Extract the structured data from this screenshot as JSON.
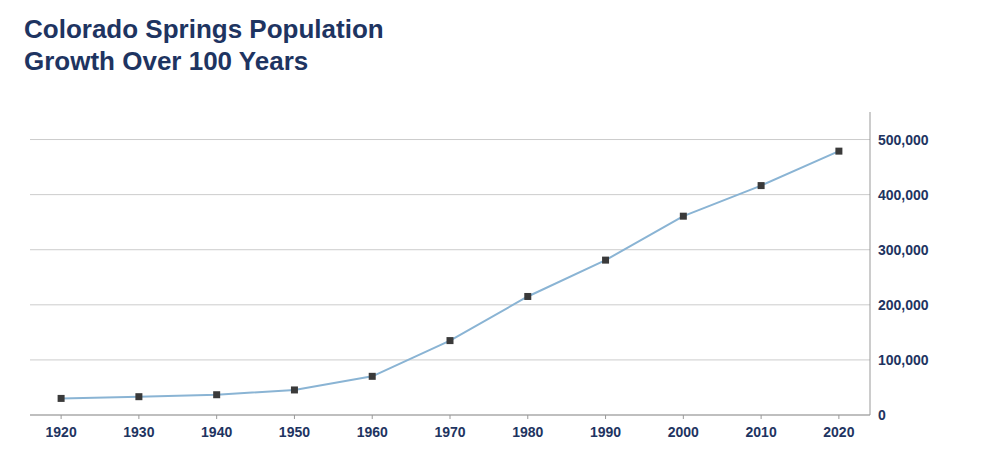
{
  "chart_data": {
    "type": "line",
    "title": "Colorado Springs Population",
    "subtitle": "Growth Over 100 Years",
    "x": [
      1920,
      1930,
      1940,
      1950,
      1960,
      1970,
      1980,
      1990,
      2000,
      2010,
      2020
    ],
    "series": [
      {
        "color": "#8ab4d4",
        "marker": "square",
        "line_style": "solid",
        "values": [
          30105,
          33237,
          36789,
          45472,
          70194,
          135060,
          215150,
          281140,
          360890,
          416427,
          478961
        ]
      }
    ],
    "xlim": [
      1916,
      2024
    ],
    "xticks": [
      1920,
      1930,
      1940,
      1950,
      1960,
      1970,
      1980,
      1990,
      2000,
      2010,
      2020
    ],
    "ylim": [
      0,
      550000
    ],
    "yticks": [
      0,
      {
        "value": 100000,
        "label": "100,000"
      },
      {
        "value": 200000,
        "label": "200,000"
      },
      {
        "value": 300000,
        "label": "300,000"
      },
      {
        "value": 400000,
        "label": "400,000"
      },
      {
        "value": 500000,
        "label": "500,000"
      }
    ],
    "grid": true
  }
}
